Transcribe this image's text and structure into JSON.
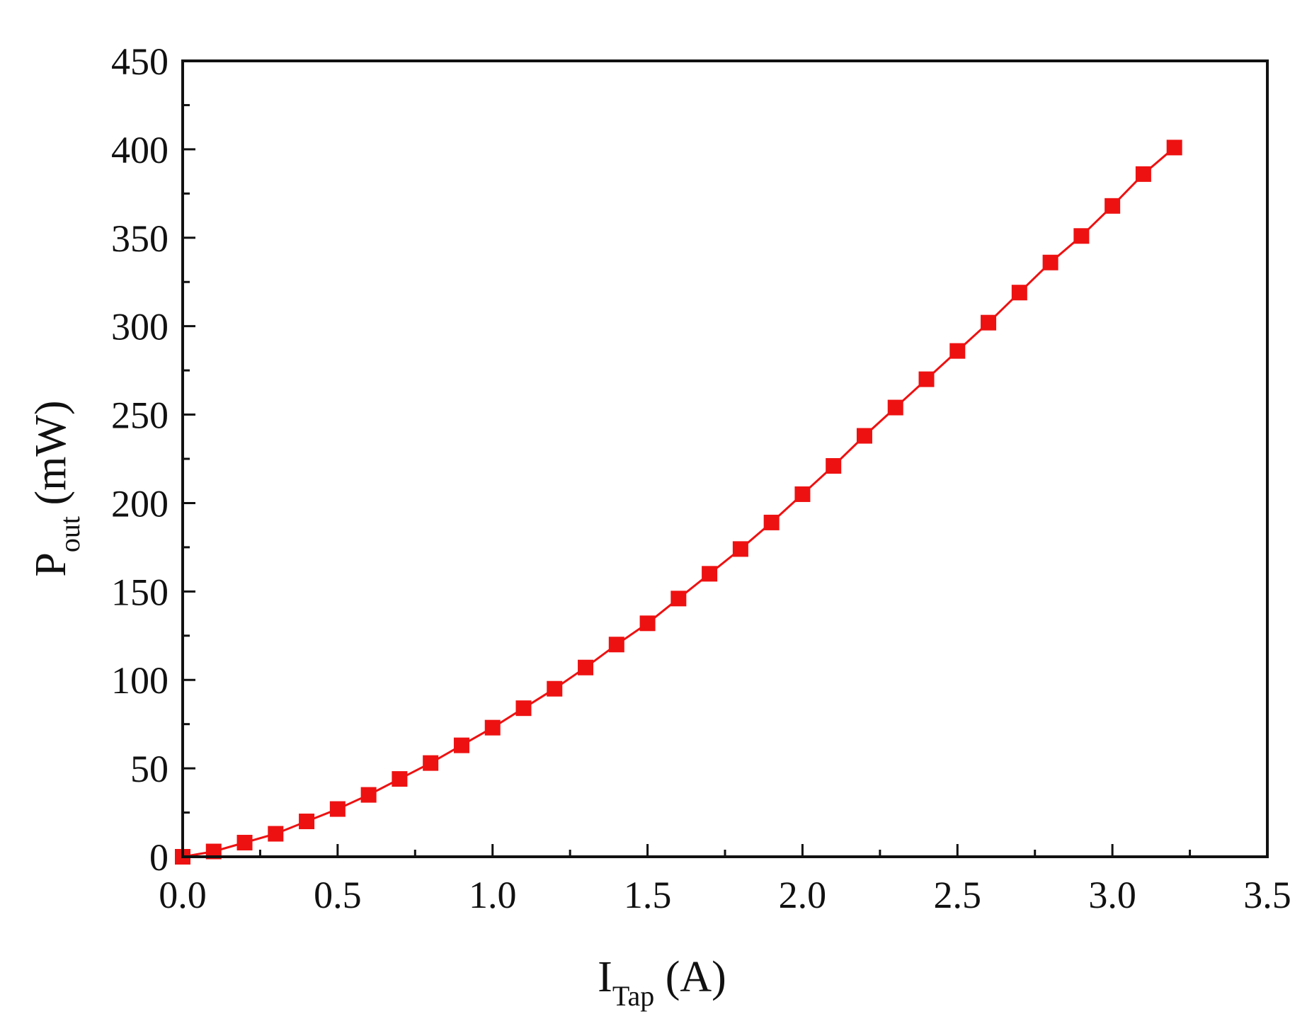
{
  "chart_data": {
    "type": "line",
    "xlabel": {
      "main": "I",
      "sub": "Tap",
      "unit": " (A)"
    },
    "ylabel": {
      "main": "P",
      "sub": "out",
      "unit": " (mW)"
    },
    "xlim": [
      0,
      3.5
    ],
    "ylim": [
      0,
      450
    ],
    "x_ticks": [
      "0.0",
      "0.5",
      "1.0",
      "1.5",
      "2.0",
      "2.5",
      "3.0",
      "3.5"
    ],
    "y_ticks": [
      "0",
      "50",
      "100",
      "150",
      "200",
      "250",
      "300",
      "350",
      "400",
      "450"
    ],
    "grid": false,
    "legend": false,
    "series": [
      {
        "color": "#ee1111",
        "marker": "square",
        "x": [
          0.0,
          0.1,
          0.2,
          0.3,
          0.4,
          0.5,
          0.6,
          0.7,
          0.8,
          0.9,
          1.0,
          1.1,
          1.2,
          1.3,
          1.4,
          1.5,
          1.6,
          1.7,
          1.8,
          1.9,
          2.0,
          2.1,
          2.2,
          2.3,
          2.4,
          2.5,
          2.6,
          2.7,
          2.8,
          2.9,
          3.0,
          3.1,
          3.2
        ],
        "y": [
          0,
          3,
          8,
          13,
          20,
          27,
          35,
          44,
          53,
          63,
          73,
          84,
          95,
          107,
          120,
          132,
          146,
          160,
          174,
          189,
          205,
          221,
          238,
          254,
          270,
          286,
          302,
          319,
          336,
          351,
          368,
          386,
          401
        ]
      }
    ]
  }
}
